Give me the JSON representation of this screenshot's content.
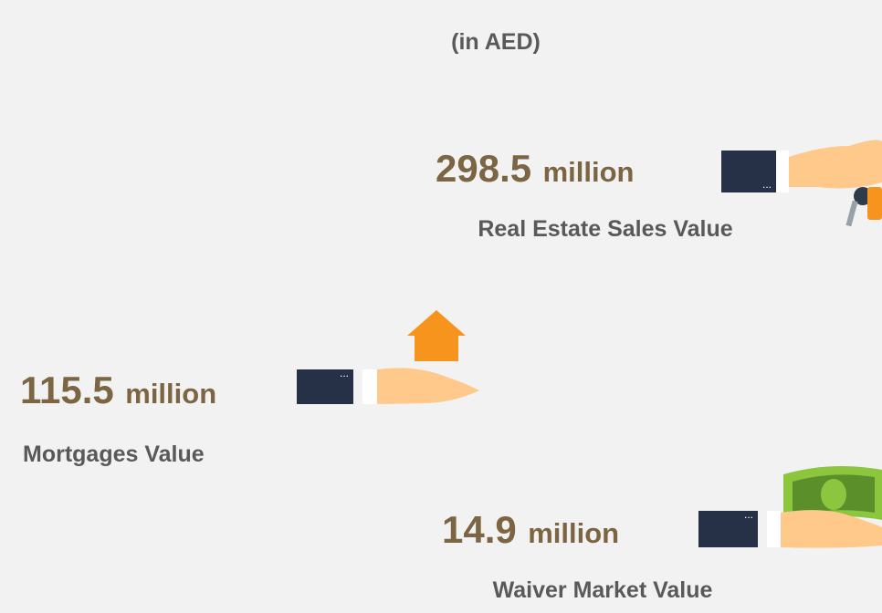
{
  "title": "(in AED)",
  "items": [
    {
      "value": 298.5,
      "unit": "million",
      "label": "Real Estate Sales Value"
    },
    {
      "value": 115.5,
      "unit": "million",
      "label": "Mortgages Value"
    },
    {
      "value": 14.9,
      "unit": "million",
      "label": "Waiver Market Value"
    }
  ]
}
